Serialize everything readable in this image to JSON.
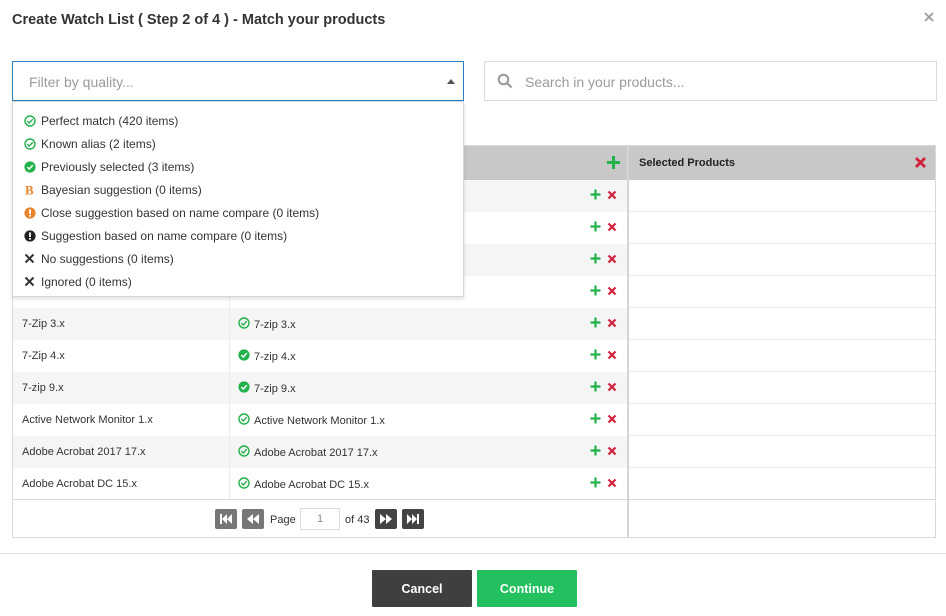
{
  "dialog": {
    "title": "Create Watch List ( Step 2 of 4 ) - Match your products"
  },
  "filter": {
    "placeholder": "Filter by quality..."
  },
  "search": {
    "placeholder": "Search in your products..."
  },
  "dropdown": {
    "items": [
      {
        "label": "Perfect match (420 items)",
        "icon": "check-circle-outline-icon",
        "color": "#22b24c"
      },
      {
        "label": "Known alias (2 items)",
        "icon": "check-circle-outline-icon",
        "color": "#22b24c"
      },
      {
        "label": "Previously selected (3 items)",
        "icon": "check-circle-filled-icon",
        "color": "#22b24c"
      },
      {
        "label": "Bayesian suggestion (0 items)",
        "icon": "bayesian-b-icon",
        "color": "#e8842c"
      },
      {
        "label": "Close suggestion based on name compare (0 items)",
        "icon": "exclamation-circle-icon",
        "color": "#e8842c"
      },
      {
        "label": "Suggestion based on name compare (0 items)",
        "icon": "exclamation-circle-icon",
        "color": "#222222"
      },
      {
        "label": "No suggestions (0 items)",
        "icon": "x-mark-icon",
        "color": "#333333"
      },
      {
        "label": "Ignored (0 items)",
        "icon": "x-mark-icon",
        "color": "#333333"
      }
    ]
  },
  "table": {
    "rows": [
      {
        "product": "",
        "match": "",
        "match_icon": ""
      },
      {
        "product": "",
        "match": "",
        "match_icon": ""
      },
      {
        "product": "",
        "match": "",
        "match_icon": ""
      },
      {
        "product": "",
        "match": "",
        "match_icon": ""
      },
      {
        "product": "7-Zip 3.x",
        "match": "7-zip 3.x",
        "match_icon": "outline"
      },
      {
        "product": "7-Zip 4.x",
        "match": "7-zip 4.x",
        "match_icon": "filled"
      },
      {
        "product": "7-zip 9.x",
        "match": "7-zip 9.x",
        "match_icon": "filled"
      },
      {
        "product": "Active Network Monitor 1.x",
        "match": "Active Network Monitor 1.x",
        "match_icon": "outline"
      },
      {
        "product": "Adobe Acrobat 2017 17.x",
        "match": "Adobe Acrobat 2017 17.x",
        "match_icon": "outline"
      },
      {
        "product": "Adobe Acrobat DC 15.x",
        "match": "Adobe Acrobat DC 15.x",
        "match_icon": "outline"
      }
    ]
  },
  "selected_panel": {
    "title": "Selected Products"
  },
  "pager": {
    "page_label": "Page",
    "current_page": "1",
    "of_label": "of 43"
  },
  "footer": {
    "cancel_label": "Cancel",
    "continue_label": "Continue"
  },
  "colors": {
    "accent_green": "#22c05f",
    "remove_red": "#d0223a",
    "cancel_dark": "#3f3f3f"
  }
}
